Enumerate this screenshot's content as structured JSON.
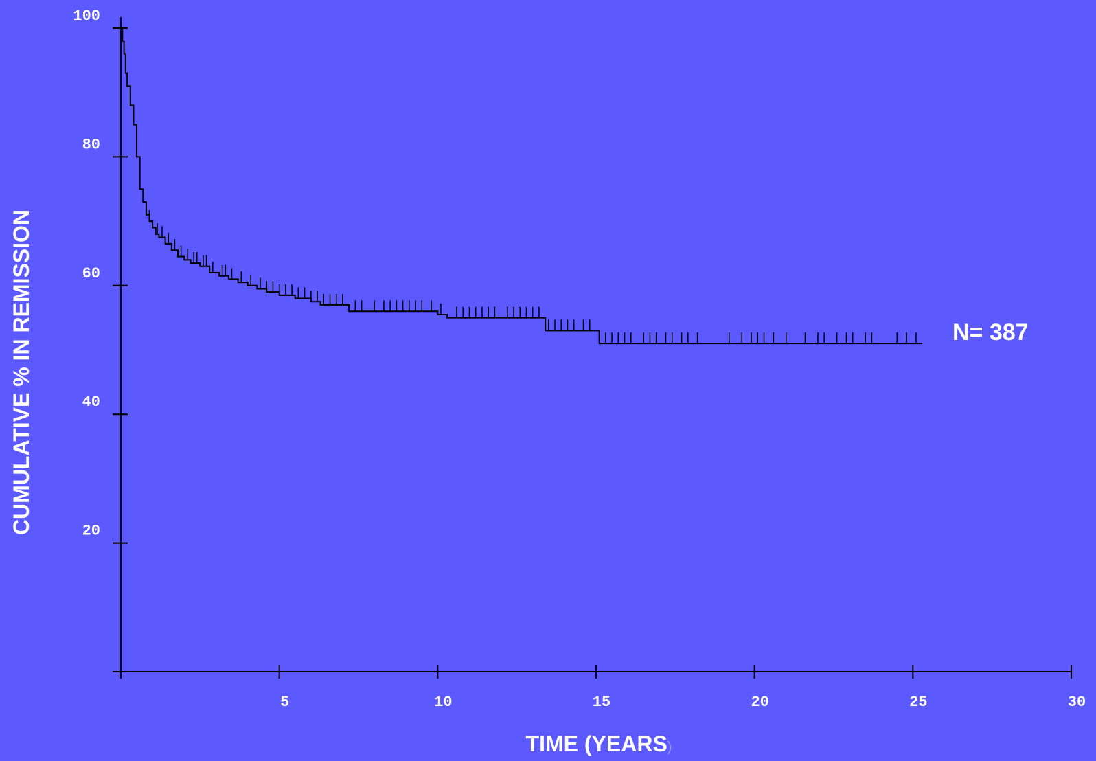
{
  "chart_data": {
    "type": "line",
    "title": "",
    "xlabel": "TIME (YEARS",
    "xlabel_suffix": ")",
    "ylabel": "CUMULATIVE % IN REMISSION",
    "xlim": [
      0,
      30
    ],
    "ylim": [
      0,
      100
    ],
    "x_ticks": [
      5,
      10,
      15,
      20,
      25,
      30
    ],
    "y_ticks": [
      20,
      40,
      60,
      80,
      100
    ],
    "grid": false,
    "annotation": "N= 387",
    "colors": {
      "background": "#5b59ff",
      "line": "#000000",
      "text": "#ffffff"
    },
    "series": [
      {
        "x": [
          0,
          0.05,
          0.1,
          0.15,
          0.2,
          0.3,
          0.4,
          0.5,
          0.6,
          0.7,
          0.8,
          0.9,
          1.0,
          1.1,
          1.2,
          1.4,
          1.6,
          1.8,
          2.0,
          2.2,
          2.5,
          2.8,
          3.1,
          3.4,
          3.7,
          4.0,
          4.3,
          4.6,
          5.0,
          5.5,
          6.0,
          6.3,
          7.0,
          7.2,
          9.7,
          10.0,
          10.3,
          13.3,
          13.4,
          15.0,
          15.1,
          25.3
        ],
        "y": [
          100,
          98,
          96,
          93,
          91,
          88,
          85,
          80,
          75,
          73,
          71,
          70,
          69,
          68,
          67.5,
          66.5,
          65.5,
          64.5,
          64,
          63.5,
          63,
          62,
          61.5,
          61,
          60.5,
          60,
          59.5,
          59,
          58.5,
          58,
          57.5,
          57,
          57,
          56,
          56,
          55.5,
          55,
          55,
          53,
          53,
          51,
          51
        ]
      }
    ],
    "censor_marks_x": [
      0.3,
      0.5,
      0.7,
      0.9,
      1.15,
      1.3,
      1.5,
      1.7,
      1.9,
      2.1,
      2.3,
      2.4,
      2.6,
      2.7,
      2.9,
      3.2,
      3.3,
      3.5,
      3.8,
      4.1,
      4.4,
      4.6,
      4.8,
      5.0,
      5.2,
      5.4,
      5.6,
      5.8,
      6.0,
      6.2,
      6.4,
      6.6,
      6.8,
      7.0,
      7.4,
      7.6,
      8.0,
      8.3,
      8.5,
      8.7,
      8.9,
      9.1,
      9.3,
      9.5,
      9.8,
      10.1,
      10.6,
      10.8,
      11.0,
      11.2,
      11.4,
      11.6,
      11.8,
      12.2,
      12.4,
      12.6,
      12.8,
      13.0,
      13.2,
      13.5,
      13.7,
      13.9,
      14.1,
      14.3,
      14.6,
      14.8,
      15.3,
      15.5,
      15.7,
      15.9,
      16.1,
      16.5,
      16.7,
      16.9,
      17.2,
      17.4,
      17.7,
      17.9,
      18.2,
      19.2,
      19.6,
      19.9,
      20.1,
      20.3,
      20.6,
      21.0,
      21.6,
      22.0,
      22.2,
      22.6,
      22.9,
      23.1,
      23.5,
      23.7,
      24.5,
      24.8,
      25.1
    ]
  }
}
